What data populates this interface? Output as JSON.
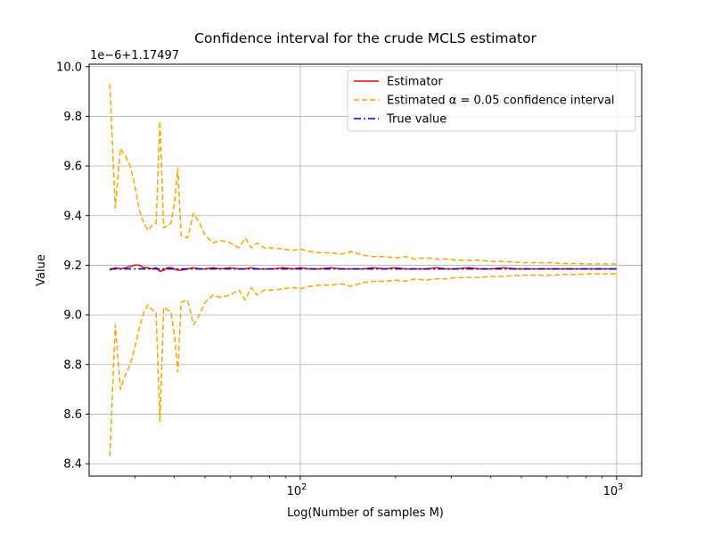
{
  "chart_data": {
    "type": "line",
    "title": "Confidence interval for the crude MCLS estimator",
    "xlabel": "Log(Number of samples M)",
    "ylabel": "Value",
    "offset_label": "1e−6+1.17497",
    "x_scale": "log",
    "xlim": [
      21.5,
      1200
    ],
    "ylim": [
      8.35,
      10.01
    ],
    "y_ticks": [
      "8.4",
      "8.6",
      "8.8",
      "9.0",
      "9.2",
      "9.4",
      "9.6",
      "9.8",
      "10.0"
    ],
    "y_tick_values": [
      8.4,
      8.6,
      8.8,
      9.0,
      9.2,
      9.4,
      9.6,
      9.8,
      10.0
    ],
    "x_ticks_major": [
      {
        "value": 100,
        "base": "10",
        "exp": "2"
      },
      {
        "value": 1000,
        "base": "10",
        "exp": "3"
      }
    ],
    "grid": true,
    "legend_position": "top-right",
    "x": [
      25,
      26,
      27,
      28,
      29,
      30,
      31,
      32,
      33,
      34,
      35,
      36,
      37,
      38,
      39,
      40,
      41,
      42,
      44,
      46,
      48,
      50,
      53,
      56,
      60,
      64,
      67,
      70,
      73,
      77,
      82,
      88,
      95,
      100,
      107,
      115,
      125,
      135,
      145,
      158,
      170,
      185,
      200,
      215,
      230,
      250,
      270,
      290,
      310,
      340,
      370,
      400,
      440,
      480,
      520,
      570,
      620,
      680,
      740,
      820,
      900,
      1000
    ],
    "series": [
      {
        "name": "Estimator",
        "color": "#ff0000",
        "dash": "solid",
        "values": [
          9.18,
          9.19,
          9.185,
          9.19,
          9.195,
          9.2,
          9.2,
          9.19,
          9.19,
          9.185,
          9.19,
          9.175,
          9.18,
          9.19,
          9.19,
          9.185,
          9.18,
          9.18,
          9.185,
          9.19,
          9.185,
          9.185,
          9.19,
          9.185,
          9.19,
          9.185,
          9.185,
          9.19,
          9.185,
          9.185,
          9.185,
          9.19,
          9.185,
          9.19,
          9.185,
          9.185,
          9.19,
          9.185,
          9.185,
          9.185,
          9.19,
          9.185,
          9.19,
          9.185,
          9.185,
          9.185,
          9.19,
          9.185,
          9.185,
          9.19,
          9.185,
          9.185,
          9.19,
          9.185,
          9.185,
          9.185,
          9.185,
          9.185,
          9.185,
          9.185,
          9.185,
          9.185
        ]
      },
      {
        "name": "Estimated α = 0.05 confidence interval",
        "color": "#ffa500",
        "dash": "dashed",
        "values": [
          9.93,
          9.43,
          9.67,
          9.64,
          9.6,
          9.52,
          9.42,
          9.37,
          9.34,
          9.36,
          9.37,
          9.78,
          9.35,
          9.36,
          9.37,
          9.45,
          9.59,
          9.32,
          9.31,
          9.41,
          9.37,
          9.32,
          9.29,
          9.3,
          9.29,
          9.27,
          9.31,
          9.27,
          9.29,
          9.27,
          9.27,
          9.265,
          9.26,
          9.265,
          9.255,
          9.25,
          9.25,
          9.245,
          9.255,
          9.24,
          9.235,
          9.235,
          9.23,
          9.235,
          9.225,
          9.23,
          9.225,
          9.225,
          9.22,
          9.22,
          9.22,
          9.215,
          9.215,
          9.212,
          9.21,
          9.21,
          9.21,
          9.207,
          9.207,
          9.205,
          9.205,
          9.205
        ]
      },
      {
        "name": "",
        "color": "#ffa500",
        "dash": "dashed",
        "values": [
          8.43,
          8.96,
          8.7,
          8.76,
          8.8,
          8.87,
          8.95,
          9.01,
          9.04,
          9.02,
          9.01,
          8.57,
          9.03,
          9.02,
          9.01,
          8.92,
          8.77,
          9.05,
          9.06,
          8.96,
          9.0,
          9.05,
          9.08,
          9.07,
          9.08,
          9.1,
          9.06,
          9.11,
          9.08,
          9.1,
          9.1,
          9.105,
          9.11,
          9.105,
          9.115,
          9.12,
          9.12,
          9.125,
          9.115,
          9.13,
          9.135,
          9.135,
          9.14,
          9.135,
          9.145,
          9.14,
          9.145,
          9.145,
          9.15,
          9.15,
          9.15,
          9.155,
          9.155,
          9.158,
          9.16,
          9.16,
          9.16,
          9.163,
          9.163,
          9.165,
          9.165,
          9.165
        ]
      }
    ],
    "reference_line": {
      "name": "True value",
      "value": 9.185,
      "color": "#0000cd",
      "dash": "dashdot"
    },
    "legend": [
      {
        "label": "Estimator",
        "color": "#ff0000",
        "dash": "solid"
      },
      {
        "label": "Estimated α = 0.05 confidence interval",
        "color": "#ffa500",
        "dash": "dashed"
      },
      {
        "label": "True value",
        "color": "#0000cd",
        "dash": "dashdot"
      }
    ]
  }
}
